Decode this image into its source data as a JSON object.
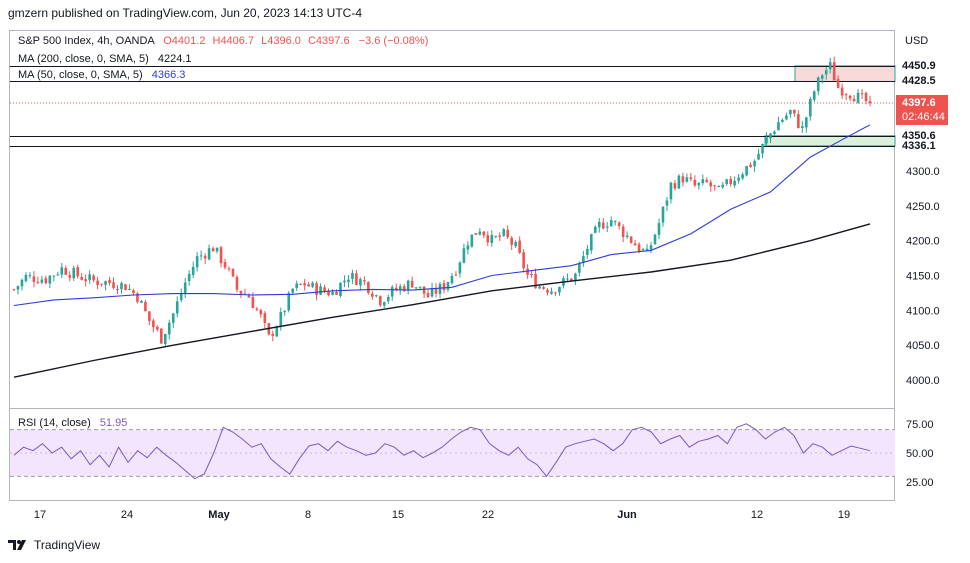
{
  "caption": "gmzern published on TradingView.com, Jun 20, 2023 14:13 UTC-4",
  "legend": {
    "symbol": "S&P 500 Index, 4h, OANDA",
    "ohlc": {
      "o": "O4401.2",
      "h": "H4406.7",
      "l": "L4396.0",
      "c": "C4397.6",
      "chg": "−3.6 (−0.08%)"
    },
    "ma200_label": "MA (200, close, 0, SMA, 5)",
    "ma200_value": "4224.1",
    "ma50_label": "MA (50, close, 0, SMA, 5)",
    "ma50_value": "4366.3",
    "rsi_label": "RSI (14, close)",
    "rsi_value": "51.95"
  },
  "axis": {
    "currency": "USD",
    "last_price": "4397.6",
    "countdown": "02:46:44"
  },
  "levels": [
    {
      "label": "4450.9",
      "value": 4450.9
    },
    {
      "label": "4428.5",
      "value": 4428.5
    },
    {
      "label": "4350.6",
      "value": 4350.6
    },
    {
      "label": "4336.1",
      "value": 4336.1
    }
  ],
  "footer": {
    "brand": "TradingView"
  },
  "colors": {
    "up": "#26a69a",
    "down": "#ef5350",
    "ma50": "#2f3cd6",
    "ma200": "#131722",
    "rsi": "#7e57c2",
    "rsi_band": "#f3e5fd",
    "resistance_zone": "#f9d9d9",
    "support_zone": "#d9f2d9"
  },
  "chart_data": {
    "type": "candlestick",
    "title": "S&P 500 Index, 4h, OANDA",
    "ylabel": "USD",
    "ylim": [
      3960,
      4470
    ],
    "y_ticks": [
      "4300.0",
      "4250.0",
      "4200.0",
      "4150.0",
      "4100.0",
      "4050.0",
      "4000.0"
    ],
    "x_ticks": [
      "17",
      "24",
      "May",
      "8",
      "15",
      "22",
      "Jun",
      "12",
      "19"
    ],
    "close_path": [
      [
        0,
        4130
      ],
      [
        3,
        4148
      ],
      [
        8,
        4145
      ],
      [
        12,
        4160
      ],
      [
        16,
        4150
      ],
      [
        20,
        4142
      ],
      [
        24,
        4140
      ],
      [
        28,
        4135
      ],
      [
        31,
        4120
      ],
      [
        34,
        4085
      ],
      [
        37,
        4060
      ],
      [
        40,
        4095
      ],
      [
        43,
        4140
      ],
      [
        46,
        4175
      ],
      [
        50,
        4190
      ],
      [
        53,
        4165
      ],
      [
        56,
        4130
      ],
      [
        59,
        4120
      ],
      [
        62,
        4090
      ],
      [
        64,
        4060
      ],
      [
        67,
        4090
      ],
      [
        70,
        4130
      ],
      [
        73,
        4138
      ],
      [
        76,
        4130
      ],
      [
        80,
        4125
      ],
      [
        84,
        4150
      ],
      [
        88,
        4140
      ],
      [
        92,
        4115
      ],
      [
        96,
        4130
      ],
      [
        100,
        4140
      ],
      [
        104,
        4120
      ],
      [
        108,
        4135
      ],
      [
        111,
        4160
      ],
      [
        114,
        4200
      ],
      [
        117,
        4218
      ],
      [
        120,
        4200
      ],
      [
        123,
        4208
      ],
      [
        126,
        4190
      ],
      [
        129,
        4150
      ],
      [
        132,
        4135
      ],
      [
        135,
        4130
      ],
      [
        138,
        4140
      ],
      [
        141,
        4150
      ],
      [
        144,
        4190
      ],
      [
        147,
        4222
      ],
      [
        150,
        4230
      ],
      [
        153,
        4212
      ],
      [
        156,
        4195
      ],
      [
        159,
        4180
      ],
      [
        162,
        4225
      ],
      [
        165,
        4280
      ],
      [
        168,
        4290
      ],
      [
        171,
        4278
      ],
      [
        174,
        4282
      ],
      [
        177,
        4270
      ],
      [
        180,
        4285
      ],
      [
        183,
        4300
      ],
      [
        186,
        4315
      ],
      [
        189,
        4345
      ],
      [
        192,
        4370
      ],
      [
        195,
        4385
      ],
      [
        198,
        4360
      ],
      [
        201,
        4415
      ],
      [
        203,
        4440
      ],
      [
        205,
        4450
      ],
      [
        207,
        4420
      ],
      [
        210,
        4412
      ],
      [
        213,
        4402
      ],
      [
        215,
        4397.6
      ]
    ],
    "series": [
      {
        "name": "MA (50, close, 0, SMA, 5)",
        "last": 4366.3,
        "path": [
          [
            0,
            4107
          ],
          [
            10,
            4115
          ],
          [
            20,
            4118
          ],
          [
            30,
            4122
          ],
          [
            40,
            4124
          ],
          [
            50,
            4124
          ],
          [
            60,
            4122
          ],
          [
            70,
            4123
          ],
          [
            80,
            4128
          ],
          [
            90,
            4130
          ],
          [
            100,
            4129
          ],
          [
            110,
            4133
          ],
          [
            120,
            4150
          ],
          [
            130,
            4157
          ],
          [
            140,
            4164
          ],
          [
            150,
            4180
          ],
          [
            160,
            4186
          ],
          [
            170,
            4210
          ],
          [
            180,
            4245
          ],
          [
            190,
            4270
          ],
          [
            200,
            4320
          ],
          [
            208,
            4345
          ],
          [
            215,
            4366.3
          ]
        ]
      },
      {
        "name": "MA (200, close, 0, SMA, 5)",
        "last": 4224.1,
        "path": [
          [
            0,
            4004
          ],
          [
            20,
            4028
          ],
          [
            40,
            4050
          ],
          [
            60,
            4070
          ],
          [
            80,
            4090
          ],
          [
            100,
            4108
          ],
          [
            120,
            4128
          ],
          [
            140,
            4142
          ],
          [
            160,
            4155
          ],
          [
            180,
            4172
          ],
          [
            200,
            4200
          ],
          [
            215,
            4224.1
          ]
        ]
      }
    ],
    "rsi": {
      "ylim": [
        20,
        80
      ],
      "y_ticks": [
        "75.00",
        "50.00",
        "25.00"
      ],
      "bands": [
        70,
        30
      ],
      "values": [
        48,
        55,
        52,
        58,
        50,
        55,
        45,
        52,
        40,
        48,
        38,
        55,
        42,
        52,
        46,
        55,
        48,
        42,
        35,
        28,
        32,
        50,
        72,
        68,
        62,
        55,
        58,
        45,
        38,
        32,
        45,
        56,
        58,
        52,
        60,
        55,
        52,
        48,
        50,
        58,
        55,
        48,
        52,
        46,
        50,
        55,
        62,
        68,
        72,
        70,
        58,
        52,
        48,
        55,
        45,
        40,
        30,
        42,
        55,
        58,
        60,
        62,
        58,
        52,
        58,
        70,
        72,
        68,
        58,
        62,
        65,
        55,
        60,
        62,
        65,
        58,
        72,
        75,
        70,
        62,
        68,
        72,
        65,
        50,
        58,
        55,
        48,
        52,
        56,
        54,
        51.95
      ]
    }
  }
}
